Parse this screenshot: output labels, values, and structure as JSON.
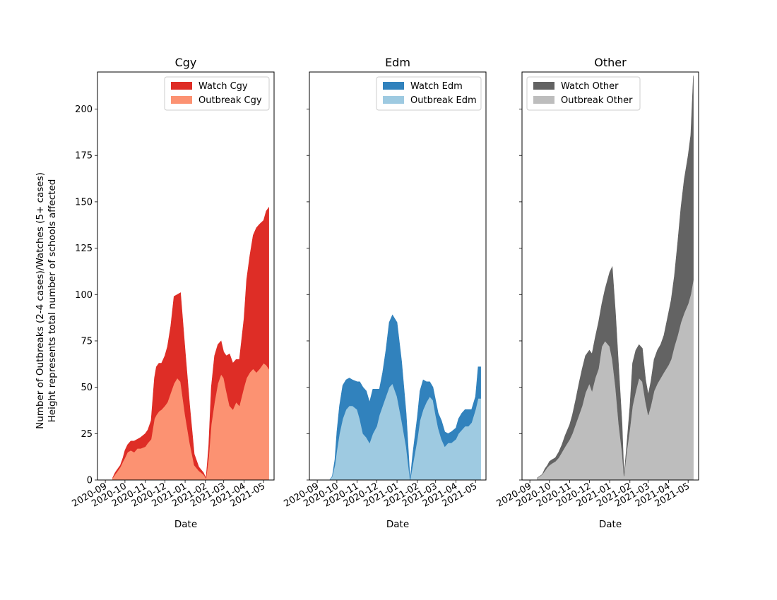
{
  "figure": {
    "ylabel_line1": "Number of Outbreaks (2-4 cases)/Watches (5+ cases)",
    "ylabel_line2": "Height represents total number of schools affected"
  },
  "chart_data": [
    {
      "type": "area",
      "stacked": true,
      "title": "Cgy",
      "xlabel": "Date",
      "ylabel": "",
      "x_ticks": [
        "2020-09",
        "2020-10",
        "2020-11",
        "2020-12",
        "2021-01",
        "2021-02",
        "2021-03",
        "2021-04",
        "2021-05"
      ],
      "ylim": [
        0,
        220
      ],
      "y_ticks": [
        0,
        25,
        50,
        75,
        100,
        125,
        150,
        175,
        200
      ],
      "legend_position": "top-right",
      "dates": [
        "2020-09-12",
        "2020-09-16",
        "2020-09-20",
        "2020-09-24",
        "2020-09-28",
        "2020-10-01",
        "2020-10-05",
        "2020-10-10",
        "2020-10-15",
        "2020-10-20",
        "2020-10-25",
        "2020-11-01",
        "2020-11-05",
        "2020-11-10",
        "2020-11-15",
        "2020-11-18",
        "2020-11-22",
        "2020-11-26",
        "2020-12-01",
        "2020-12-05",
        "2020-12-10",
        "2020-12-15",
        "2020-12-20",
        "2020-12-25",
        "2021-01-01",
        "2021-01-08",
        "2021-01-15",
        "2021-01-22",
        "2021-01-29",
        "2021-02-02",
        "2021-02-06",
        "2021-02-10",
        "2021-02-15",
        "2021-02-20",
        "2021-02-25",
        "2021-03-01",
        "2021-03-05",
        "2021-03-10",
        "2021-03-15",
        "2021-03-20",
        "2021-03-25",
        "2021-04-01",
        "2021-04-05",
        "2021-04-10",
        "2021-04-15",
        "2021-04-20",
        "2021-04-25",
        "2021-05-01",
        "2021-05-05",
        "2021-05-09"
      ],
      "series": [
        {
          "name": "Outbreak Cgy",
          "color": "#fc9272",
          "values": [
            1,
            3,
            5,
            7,
            10,
            12,
            15,
            16,
            15,
            17,
            17,
            18,
            20,
            22,
            33,
            35,
            37,
            38,
            40,
            42,
            47,
            52,
            55,
            53,
            35,
            20,
            8,
            5,
            3,
            1,
            12,
            30,
            42,
            52,
            57,
            55,
            48,
            40,
            38,
            42,
            40,
            50,
            55,
            58,
            60,
            58,
            60,
            63,
            62,
            60
          ]
        },
        {
          "name": "Watch Cgy",
          "color": "#de2d26",
          "values": [
            0,
            1,
            1,
            1,
            2,
            4,
            4,
            5,
            6,
            5,
            6,
            7,
            7,
            10,
            22,
            26,
            26,
            25,
            27,
            30,
            36,
            47,
            45,
            48,
            35,
            20,
            6,
            2,
            1,
            0,
            6,
            20,
            25,
            21,
            18,
            14,
            19,
            28,
            25,
            23,
            25,
            37,
            53,
            63,
            72,
            78,
            78,
            77,
            83,
            87
          ]
        }
      ]
    },
    {
      "type": "area",
      "stacked": true,
      "title": "Edm",
      "xlabel": "Date",
      "ylabel": "",
      "x_ticks": [
        "2020-09",
        "2020-10",
        "2020-11",
        "2020-12",
        "2021-01",
        "2021-02",
        "2021-03",
        "2021-04",
        "2021-05"
      ],
      "ylim": [
        0,
        220
      ],
      "y_ticks": [
        0,
        25,
        50,
        75,
        100,
        125,
        150,
        175,
        200
      ],
      "legend_position": "top-right",
      "dates": [
        "2020-09-12",
        "2020-09-16",
        "2020-09-20",
        "2020-09-24",
        "2020-09-28",
        "2020-10-01",
        "2020-10-05",
        "2020-10-10",
        "2020-10-15",
        "2020-10-20",
        "2020-10-25",
        "2020-11-01",
        "2020-11-05",
        "2020-11-10",
        "2020-11-15",
        "2020-11-20",
        "2020-11-25",
        "2020-12-01",
        "2020-12-05",
        "2020-12-10",
        "2020-12-15",
        "2020-12-20",
        "2020-12-25",
        "2021-01-01",
        "2021-01-08",
        "2021-01-15",
        "2021-01-21",
        "2021-01-25",
        "2021-02-01",
        "2021-02-05",
        "2021-02-10",
        "2021-02-15",
        "2021-02-20",
        "2021-02-25",
        "2021-03-01",
        "2021-03-05",
        "2021-03-10",
        "2021-03-15",
        "2021-03-20",
        "2021-03-25",
        "2021-04-01",
        "2021-04-05",
        "2021-04-10",
        "2021-04-15",
        "2021-04-20",
        "2021-04-25",
        "2021-05-01",
        "2021-05-05",
        "2021-05-09"
      ],
      "series": [
        {
          "name": "Outbreak Edm",
          "color": "#9ecae1",
          "values": [
            0,
            0,
            0,
            2,
            8,
            16,
            25,
            33,
            38,
            40,
            40,
            38,
            33,
            25,
            23,
            20,
            25,
            29,
            35,
            40,
            45,
            50,
            52,
            45,
            32,
            18,
            0,
            8,
            22,
            32,
            38,
            42,
            45,
            43,
            35,
            28,
            22,
            18,
            20,
            20,
            22,
            25,
            27,
            29,
            29,
            31,
            38,
            44,
            44
          ]
        },
        {
          "name": "Watch Edm",
          "color": "#3182bd",
          "values": [
            0,
            0,
            0,
            0,
            3,
            10,
            15,
            18,
            16,
            15,
            14,
            15,
            20,
            25,
            25,
            22,
            24,
            20,
            14,
            18,
            25,
            35,
            37,
            40,
            32,
            18,
            0,
            6,
            12,
            16,
            16,
            11,
            8,
            7,
            8,
            8,
            10,
            8,
            5,
            6,
            6,
            8,
            9,
            9,
            9,
            7,
            7,
            17,
            17
          ]
        }
      ]
    },
    {
      "type": "area",
      "stacked": true,
      "title": "Other",
      "xlabel": "Date",
      "ylabel": "",
      "x_ticks": [
        "2020-09",
        "2020-10",
        "2020-11",
        "2020-12",
        "2021-01",
        "2021-02",
        "2021-03",
        "2021-04",
        "2021-05"
      ],
      "ylim": [
        0,
        220
      ],
      "y_ticks": [
        0,
        25,
        50,
        75,
        100,
        125,
        150,
        175,
        200
      ],
      "legend_position": "top-left",
      "dates": [
        "2020-09-12",
        "2020-09-16",
        "2020-09-20",
        "2020-09-24",
        "2020-09-28",
        "2020-10-01",
        "2020-10-05",
        "2020-10-10",
        "2020-10-15",
        "2020-10-20",
        "2020-10-25",
        "2020-11-01",
        "2020-11-05",
        "2020-11-10",
        "2020-11-15",
        "2020-11-20",
        "2020-11-25",
        "2020-12-01",
        "2020-12-05",
        "2020-12-10",
        "2020-12-15",
        "2020-12-20",
        "2020-12-25",
        "2021-01-01",
        "2021-01-05",
        "2021-01-10",
        "2021-01-15",
        "2021-01-20",
        "2021-01-23",
        "2021-01-27",
        "2021-02-01",
        "2021-02-05",
        "2021-02-10",
        "2021-02-15",
        "2021-02-20",
        "2021-02-25",
        "2021-03-01",
        "2021-03-05",
        "2021-03-10",
        "2021-03-15",
        "2021-03-20",
        "2021-03-25",
        "2021-04-01",
        "2021-04-05",
        "2021-04-10",
        "2021-04-15",
        "2021-04-20",
        "2021-04-25",
        "2021-05-01",
        "2021-05-05",
        "2021-05-09"
      ],
      "series": [
        {
          "name": "Outbreak Other",
          "color": "#bdbdbd",
          "values": [
            1,
            2,
            3,
            5,
            7,
            8,
            9,
            10,
            12,
            15,
            18,
            22,
            25,
            30,
            35,
            40,
            47,
            52,
            48,
            55,
            60,
            72,
            75,
            72,
            65,
            50,
            30,
            15,
            2,
            15,
            28,
            40,
            48,
            55,
            53,
            42,
            35,
            40,
            48,
            52,
            55,
            58,
            62,
            65,
            72,
            78,
            85,
            90,
            95,
            100,
            108
          ]
        },
        {
          "name": "Watch Other",
          "color": "#636363",
          "values": [
            0,
            0,
            0,
            1,
            1,
            2,
            2,
            2,
            3,
            4,
            6,
            8,
            10,
            13,
            17,
            20,
            20,
            18,
            20,
            22,
            25,
            23,
            28,
            40,
            50,
            40,
            30,
            15,
            0,
            3,
            12,
            23,
            22,
            18,
            18,
            12,
            11,
            13,
            17,
            18,
            18,
            20,
            28,
            32,
            38,
            50,
            62,
            72,
            80,
            86,
            110
          ]
        }
      ]
    }
  ]
}
